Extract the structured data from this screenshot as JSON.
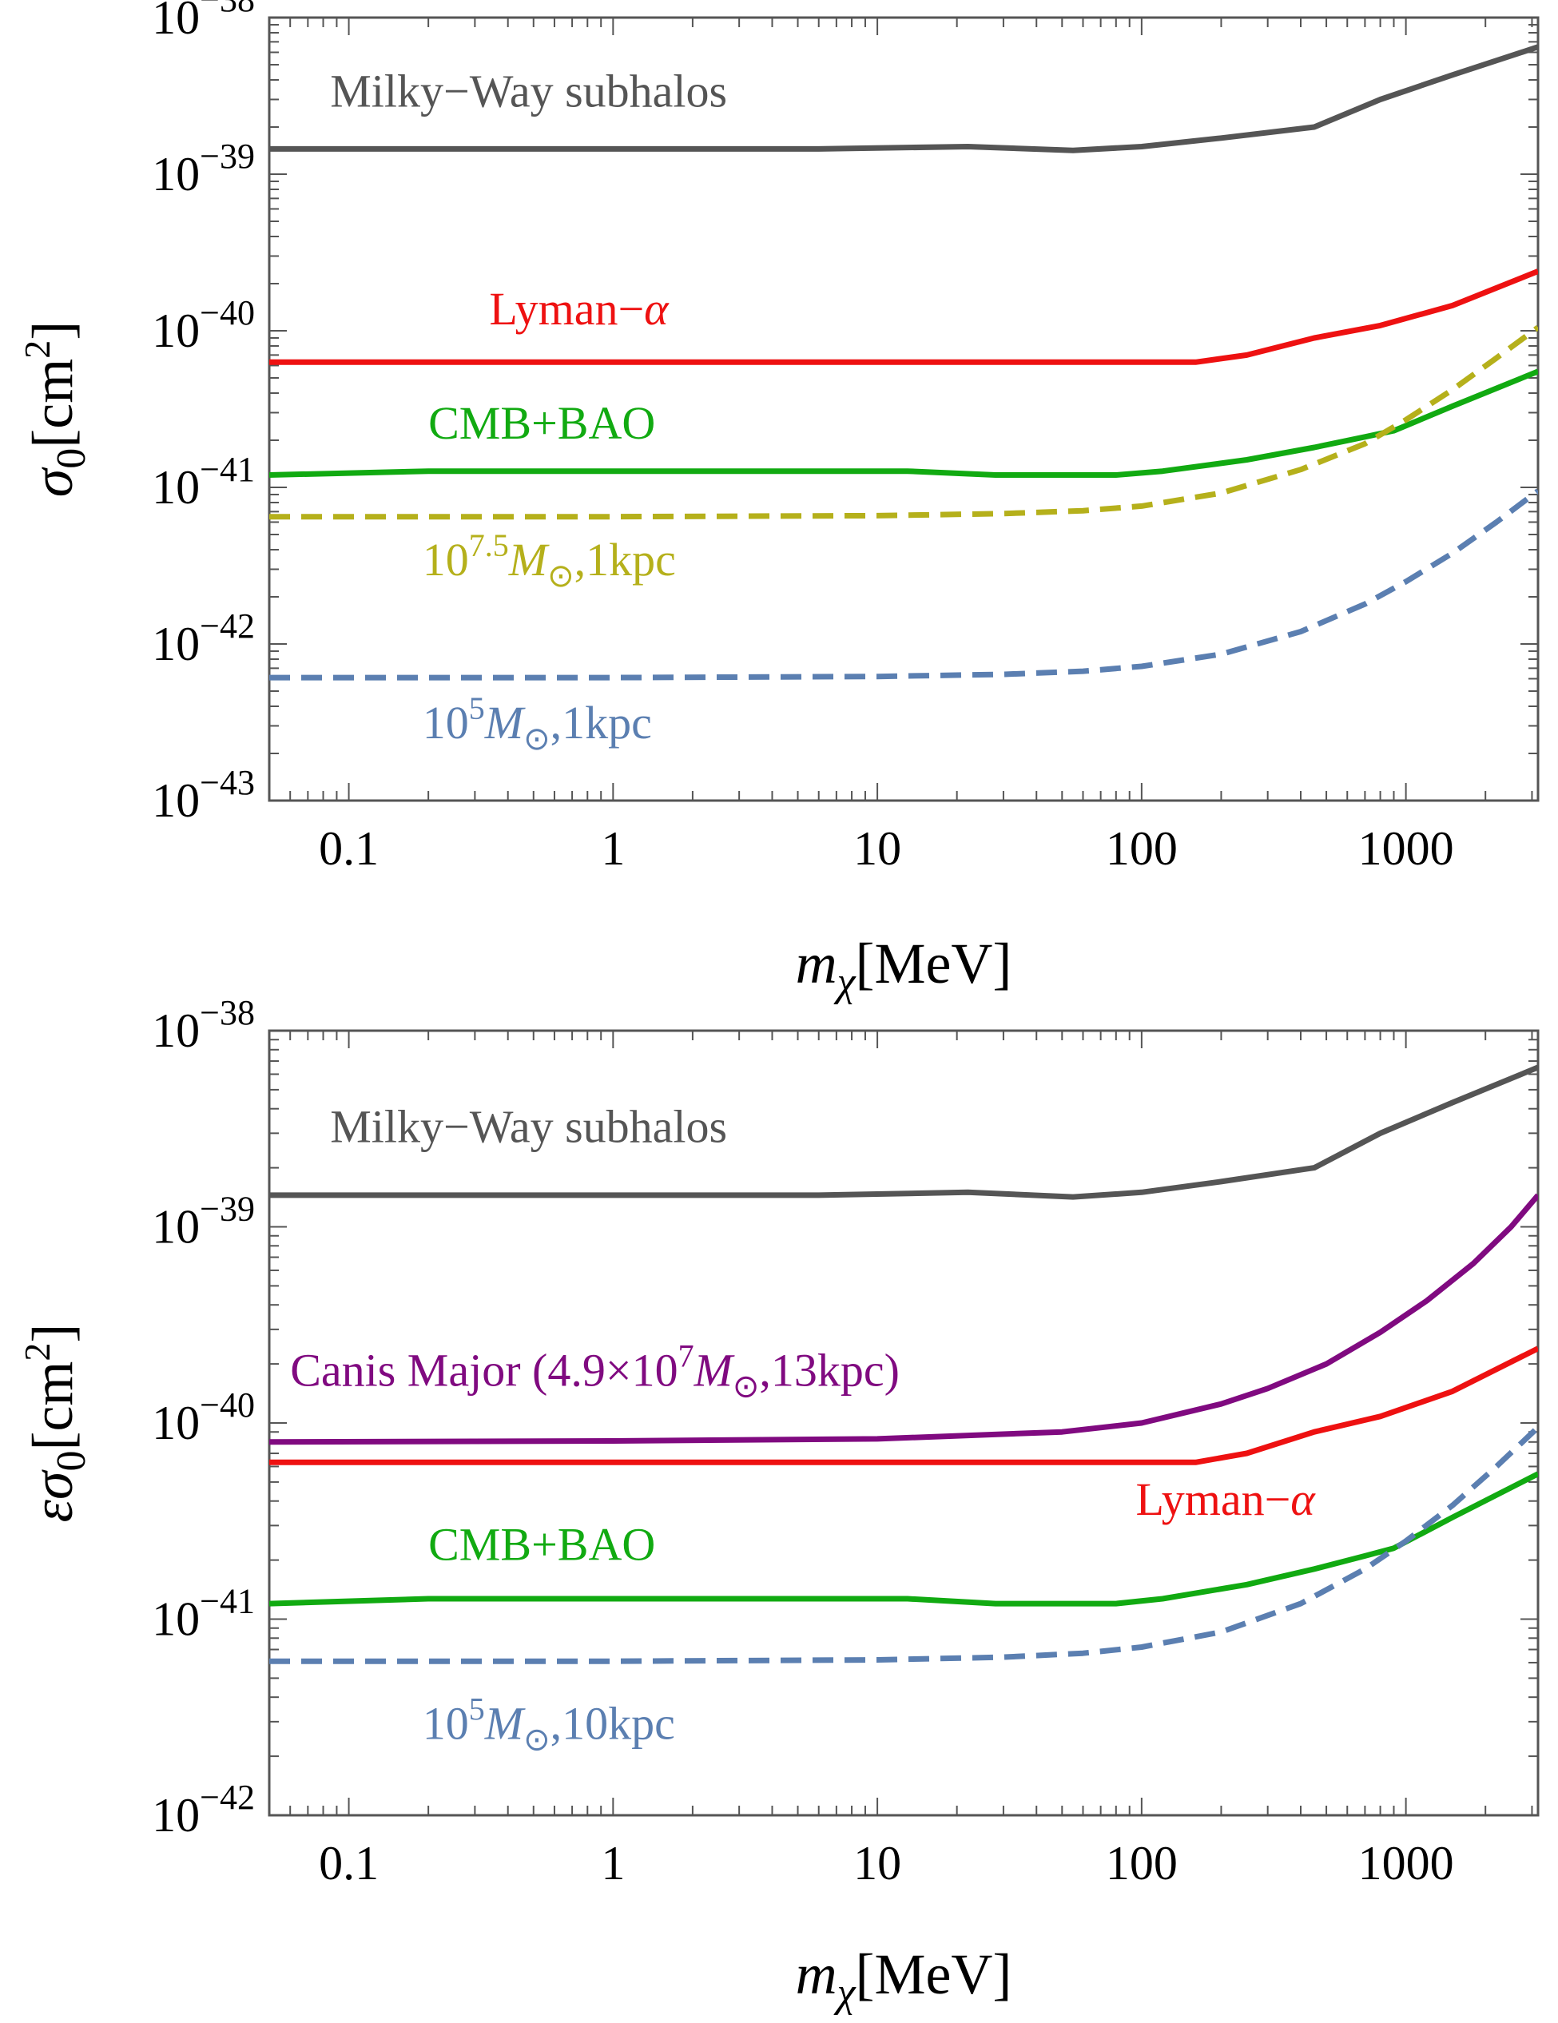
{
  "chart_data": [
    {
      "type": "line",
      "xscale": "log",
      "yscale": "log",
      "xlim": [
        0.05,
        3162
      ],
      "ylim": [
        1e-43,
        1e-38
      ],
      "xlabel_main": "m",
      "xlabel_sub": "χ",
      "xlabel_unit": "[MeV]",
      "ylabel_main": "σ",
      "ylabel_sub": "0",
      "ylabel_unit_pre": "[cm",
      "ylabel_unit_sup": "2",
      "ylabel_unit_post": "]",
      "xticks": [
        {
          "value": 0.1,
          "label": "0.1"
        },
        {
          "value": 1,
          "label": "1"
        },
        {
          "value": 10,
          "label": "10"
        },
        {
          "value": 100,
          "label": "100"
        },
        {
          "value": 1000,
          "label": "1000"
        }
      ],
      "yticks": [
        {
          "exp": -38,
          "base": "10",
          "sup": "−38"
        },
        {
          "exp": -39,
          "base": "10",
          "sup": "−39"
        },
        {
          "exp": -40,
          "base": "10",
          "sup": "−40"
        },
        {
          "exp": -41,
          "base": "10",
          "sup": "−41"
        },
        {
          "exp": -42,
          "base": "10",
          "sup": "−42"
        },
        {
          "exp": -43,
          "base": "10",
          "sup": "−43"
        }
      ],
      "series": [
        {
          "name": "Milky−Way subhalos",
          "color": "#555555",
          "dash": "solid",
          "x": [
            0.05,
            1,
            6,
            22,
            55,
            100,
            200,
            450,
            800,
            1500,
            3162
          ],
          "y": [
            1.45e-39,
            1.45e-39,
            1.45e-39,
            1.5e-39,
            1.42e-39,
            1.5e-39,
            1.7e-39,
            2e-39,
            3e-39,
            4.3e-39,
            6.5e-39
          ]
        },
        {
          "name": "Lyman−α",
          "color": "#ee1111",
          "dash": "solid",
          "x": [
            0.05,
            1,
            10,
            100,
            160,
            250,
            450,
            800,
            1500,
            3162
          ],
          "y": [
            6.3e-41,
            6.3e-41,
            6.3e-41,
            6.3e-41,
            6.3e-41,
            7e-41,
            9e-41,
            1.08e-40,
            1.45e-40,
            2.4e-40
          ]
        },
        {
          "name": "CMB+BAO",
          "color": "#11aa11",
          "dash": "solid",
          "x": [
            0.05,
            0.2,
            1,
            13,
            28,
            80,
            120,
            250,
            450,
            700,
            900,
            1500,
            3162
          ],
          "y": [
            1.2e-41,
            1.27e-41,
            1.27e-41,
            1.27e-41,
            1.2e-41,
            1.2e-41,
            1.27e-41,
            1.5e-41,
            1.8e-41,
            2.1e-41,
            2.3e-41,
            3.3e-41,
            5.5e-41
          ]
        },
        {
          "name": "10^7.5 M⊙,1kpc",
          "color": "#b5b01b",
          "dash": "dashed",
          "x": [
            0.05,
            1,
            10,
            30,
            60,
            100,
            200,
            400,
            700,
            1000,
            1500,
            2200,
            3162
          ],
          "y": [
            6.5e-42,
            6.5e-42,
            6.6e-42,
            6.8e-42,
            7.1e-42,
            7.6e-42,
            9.2e-42,
            1.3e-41,
            1.9e-41,
            2.7e-41,
            4.2e-41,
            6.7e-41,
            1.05e-40
          ]
        },
        {
          "name": "10^5 M⊙,1kpc",
          "color": "#5b7fb1",
          "dash": "dashed",
          "x": [
            0.05,
            1,
            10,
            30,
            60,
            100,
            200,
            400,
            700,
            1000,
            1500,
            2200,
            3162
          ],
          "y": [
            6.1e-43,
            6.1e-43,
            6.2e-43,
            6.4e-43,
            6.7e-43,
            7.2e-43,
            8.6e-43,
            1.2e-42,
            1.8e-42,
            2.5e-42,
            3.8e-42,
            6e-42,
            9.5e-42
          ]
        }
      ],
      "labels": [
        {
          "series": 0,
          "anchor": [
            0.085,
            2.7e-39
          ],
          "parts": [
            {
              "t": "Milky−Way subhalos"
            }
          ]
        },
        {
          "series": 1,
          "anchor": [
            0.34,
            1.1e-40
          ],
          "parts": [
            {
              "t": "Lyman−"
            },
            {
              "t": "α",
              "i": true
            }
          ]
        },
        {
          "series": 2,
          "anchor": [
            0.2,
            2.05e-41
          ],
          "parts": [
            {
              "t": "CMB+BAO"
            }
          ]
        },
        {
          "series": 3,
          "anchor": [
            0.19,
            2.75e-42
          ],
          "parts": [
            {
              "t": "10"
            },
            {
              "t": "7.5",
              "sup": true
            },
            {
              "t": "M",
              "i": true
            },
            {
              "t": "⊙",
              "sub": true
            },
            {
              "t": ",1kpc"
            }
          ]
        },
        {
          "series": 4,
          "anchor": [
            0.19,
            2.5e-43
          ],
          "parts": [
            {
              "t": "10"
            },
            {
              "t": "5",
              "sup": true
            },
            {
              "t": "M",
              "i": true
            },
            {
              "t": "⊙",
              "sub": true
            },
            {
              "t": ",1kpc"
            }
          ]
        }
      ]
    },
    {
      "type": "line",
      "xscale": "log",
      "yscale": "log",
      "xlim": [
        0.05,
        3162
      ],
      "ylim": [
        1e-42,
        1e-38
      ],
      "xlabel_main": "m",
      "xlabel_sub": "χ",
      "xlabel_unit": "[MeV]",
      "ylabel_main": "εσ",
      "ylabel_sub": "0",
      "ylabel_unit_pre": "[cm",
      "ylabel_unit_sup": "2",
      "ylabel_unit_post": "]",
      "xticks": [
        {
          "value": 0.1,
          "label": "0.1"
        },
        {
          "value": 1,
          "label": "1"
        },
        {
          "value": 10,
          "label": "10"
        },
        {
          "value": 100,
          "label": "100"
        },
        {
          "value": 1000,
          "label": "1000"
        }
      ],
      "yticks": [
        {
          "exp": -38,
          "base": "10",
          "sup": "−38"
        },
        {
          "exp": -39,
          "base": "10",
          "sup": "−39"
        },
        {
          "exp": -40,
          "base": "10",
          "sup": "−40"
        },
        {
          "exp": -41,
          "base": "10",
          "sup": "−41"
        },
        {
          "exp": -42,
          "base": "10",
          "sup": "−42"
        }
      ],
      "series": [
        {
          "name": "Milky−Way subhalos",
          "color": "#555555",
          "dash": "solid",
          "x": [
            0.05,
            1,
            6,
            22,
            55,
            100,
            200,
            450,
            800,
            1500,
            3162
          ],
          "y": [
            1.45e-39,
            1.45e-39,
            1.45e-39,
            1.5e-39,
            1.42e-39,
            1.5e-39,
            1.7e-39,
            2e-39,
            3e-39,
            4.3e-39,
            6.5e-39
          ]
        },
        {
          "name": "Canis Major (4.9×10^7 M⊙,13kpc)",
          "color": "#800a80",
          "dash": "solid",
          "x": [
            0.05,
            1,
            10,
            50,
            100,
            200,
            300,
            500,
            800,
            1200,
            1800,
            2500,
            3162
          ],
          "y": [
            8e-41,
            8.1e-41,
            8.3e-41,
            9e-41,
            1e-40,
            1.25e-40,
            1.5e-40,
            2e-40,
            2.9e-40,
            4.2e-40,
            6.5e-40,
            1e-39,
            1.45e-39
          ]
        },
        {
          "name": "Lyman−α",
          "color": "#ee1111",
          "dash": "solid",
          "x": [
            0.05,
            1,
            10,
            100,
            160,
            250,
            450,
            800,
            1500,
            3162
          ],
          "y": [
            6.3e-41,
            6.3e-41,
            6.3e-41,
            6.3e-41,
            6.3e-41,
            7e-41,
            9e-41,
            1.08e-40,
            1.45e-40,
            2.4e-40
          ]
        },
        {
          "name": "CMB+BAO",
          "color": "#11aa11",
          "dash": "solid",
          "x": [
            0.05,
            0.2,
            1,
            13,
            28,
            80,
            120,
            250,
            450,
            700,
            900,
            1500,
            3162
          ],
          "y": [
            1.2e-41,
            1.27e-41,
            1.27e-41,
            1.27e-41,
            1.2e-41,
            1.2e-41,
            1.27e-41,
            1.5e-41,
            1.8e-41,
            2.1e-41,
            2.3e-41,
            3.3e-41,
            5.5e-41
          ]
        },
        {
          "name": "10^5 M⊙,10kpc",
          "color": "#5b7fb1",
          "dash": "dashed",
          "x": [
            0.05,
            1,
            10,
            30,
            60,
            100,
            200,
            400,
            700,
            1000,
            1500,
            2200,
            3162
          ],
          "y": [
            6.1e-42,
            6.1e-42,
            6.2e-42,
            6.4e-42,
            6.7e-42,
            7.2e-42,
            8.6e-42,
            1.2e-41,
            1.8e-41,
            2.5e-41,
            3.8e-41,
            6e-41,
            9.5e-41
          ]
        }
      ],
      "labels": [
        {
          "series": 0,
          "anchor": [
            0.085,
            2.7e-39
          ],
          "parts": [
            {
              "t": "Milky−Way subhalos"
            }
          ]
        },
        {
          "series": 1,
          "anchor": [
            0.06,
            1.55e-40
          ],
          "parts": [
            {
              "t": "Canis Major (4.9×10"
            },
            {
              "t": "7",
              "sup": true
            },
            {
              "t": "M",
              "i": true
            },
            {
              "t": "⊙",
              "sub": true
            },
            {
              "t": ",13kpc)"
            }
          ]
        },
        {
          "series": 2,
          "anchor": [
            95,
            3.4e-41
          ],
          "parts": [
            {
              "t": "Lyman−"
            },
            {
              "t": "α",
              "i": true
            }
          ]
        },
        {
          "series": 3,
          "anchor": [
            0.2,
            2e-41
          ],
          "parts": [
            {
              "t": "CMB+BAO"
            }
          ]
        },
        {
          "series": 4,
          "anchor": [
            0.19,
            2.45e-42
          ],
          "parts": [
            {
              "t": "10"
            },
            {
              "t": "5",
              "sup": true
            },
            {
              "t": "M",
              "i": true
            },
            {
              "t": "⊙",
              "sub": true
            },
            {
              "t": ",10kpc"
            }
          ]
        }
      ]
    }
  ]
}
